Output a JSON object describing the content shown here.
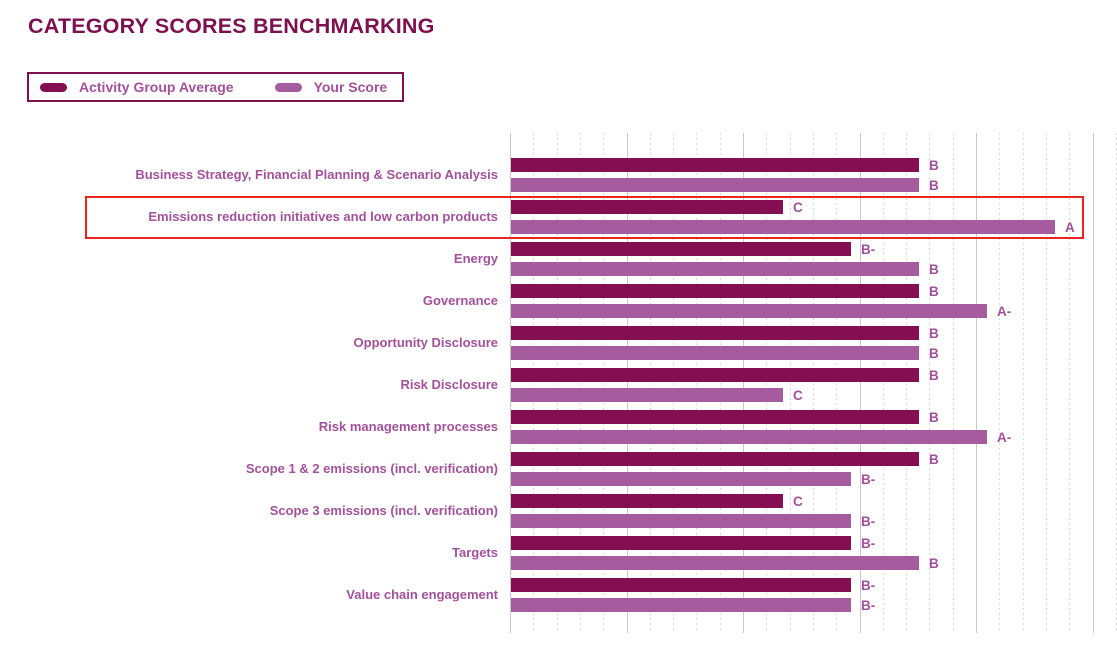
{
  "title": "CATEGORY SCORES BENCHMARKING",
  "legend": {
    "items": [
      {
        "label": "Activity Group Average"
      },
      {
        "label": "Your Score"
      }
    ]
  },
  "colors": {
    "average_bar": "#850d51",
    "your_score_bar": "#a55c9e",
    "title_text": "#7d104e",
    "label_text": "#a3519b",
    "legend_border": "#7d104e",
    "highlight_border": "#e8251f",
    "grid_solid": "#c9c9c9",
    "grid_dotted": "#d9d9d9"
  },
  "chart_data": {
    "type": "bar",
    "orientation": "horizontal",
    "title": "CATEGORY SCORES BENCHMARKING",
    "legend_position": "top-left",
    "grid": "vertical gridlines; solid major lines with 4 dotted minor lines between each pair",
    "grade_scale_values": {
      "A": 8,
      "A-": 7,
      "B": 6,
      "B-": 5,
      "C": 4
    },
    "xlim": [
      0,
      8.6
    ],
    "categories": [
      "Business Strategy, Financial Planning & Scenario Analysis",
      "Emissions reduction initiatives and low carbon products",
      "Energy",
      "Governance",
      "Opportunity Disclosure",
      "Risk Disclosure",
      "Risk management processes",
      "Scope 1 & 2 emissions (incl. verification)",
      "Scope 3 emissions (incl. verification)",
      "Targets",
      "Value chain engagement"
    ],
    "series": [
      {
        "name": "Activity Group Average",
        "grades": [
          "B",
          "C",
          "B-",
          "B",
          "B",
          "B",
          "B",
          "B",
          "C",
          "B-",
          "B-"
        ]
      },
      {
        "name": "Your Score",
        "grades": [
          "B",
          "A",
          "B",
          "A-",
          "B",
          "C",
          "A-",
          "B-",
          "B-",
          "B",
          "B-"
        ]
      }
    ],
    "highlighted_category_index": 1,
    "highlighted_category": "Emissions reduction initiatives and low carbon products"
  }
}
